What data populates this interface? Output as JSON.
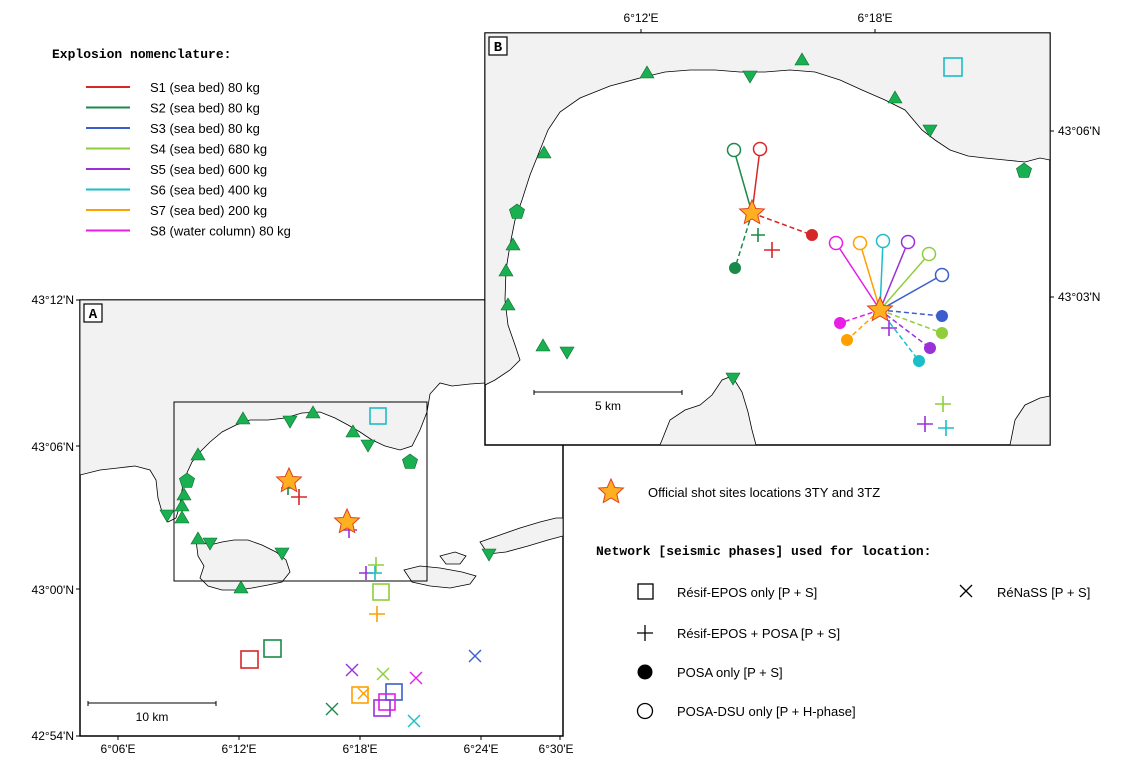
{
  "nomenclature": {
    "title": "Explosion nomenclature:",
    "items": [
      {
        "label": "S1 (sea bed) 80 kg",
        "color": "#d62728"
      },
      {
        "label": "S2 (sea bed) 80 kg",
        "color": "#1a8a4a"
      },
      {
        "label": "S3 (sea bed) 80 kg",
        "color": "#3a5fcd"
      },
      {
        "label": "S4 (sea bed) 680 kg",
        "color": "#8fce3a"
      },
      {
        "label": "S5 (sea bed) 600 kg",
        "color": "#9b30d9"
      },
      {
        "label": "S6 (sea bed) 400 kg",
        "color": "#1bbec8"
      },
      {
        "label": "S7 (sea bed) 200 kg",
        "color": "#ff9f00"
      },
      {
        "label": "S8 (water column) 80 kg",
        "color": "#e61ee6"
      }
    ]
  },
  "panelA": {
    "label": "A",
    "lat_ticks": [
      "43°12'N",
      "43°06'N",
      "43°00'N",
      "42°54'N"
    ],
    "lon_ticks": [
      "6°06'E",
      "6°12'E",
      "6°18'E",
      "6°24'E",
      "6°30'E"
    ],
    "scale_label": "10 km"
  },
  "panelB": {
    "label": "B",
    "lon_ticks": [
      "6°12'E",
      "6°18'E"
    ],
    "lat_ticks": [
      "43°06'N",
      "43°03'N"
    ],
    "scale_label": "5 km"
  },
  "legend": {
    "shot_sites": "Official shot sites locations 3TY and 3TZ",
    "network_title": "Network [seismic phases] used for location:",
    "resif_only": "Résif-EPOS only [P + S]",
    "renass": "RéNaSS [P + S]",
    "resif_posa": "Résif-EPOS + POSA [P + S]",
    "posa_only": "POSA only [P + S]",
    "posa_dsu": "POSA-DSU only [P + H-phase]"
  },
  "colors": {
    "land": "#f2f2f2",
    "station": "#18b050",
    "star_fill": "#ffb020",
    "star_stroke": "#e04020"
  },
  "icons": {
    "station": "triangle-station-icon",
    "shot": "star-icon"
  }
}
